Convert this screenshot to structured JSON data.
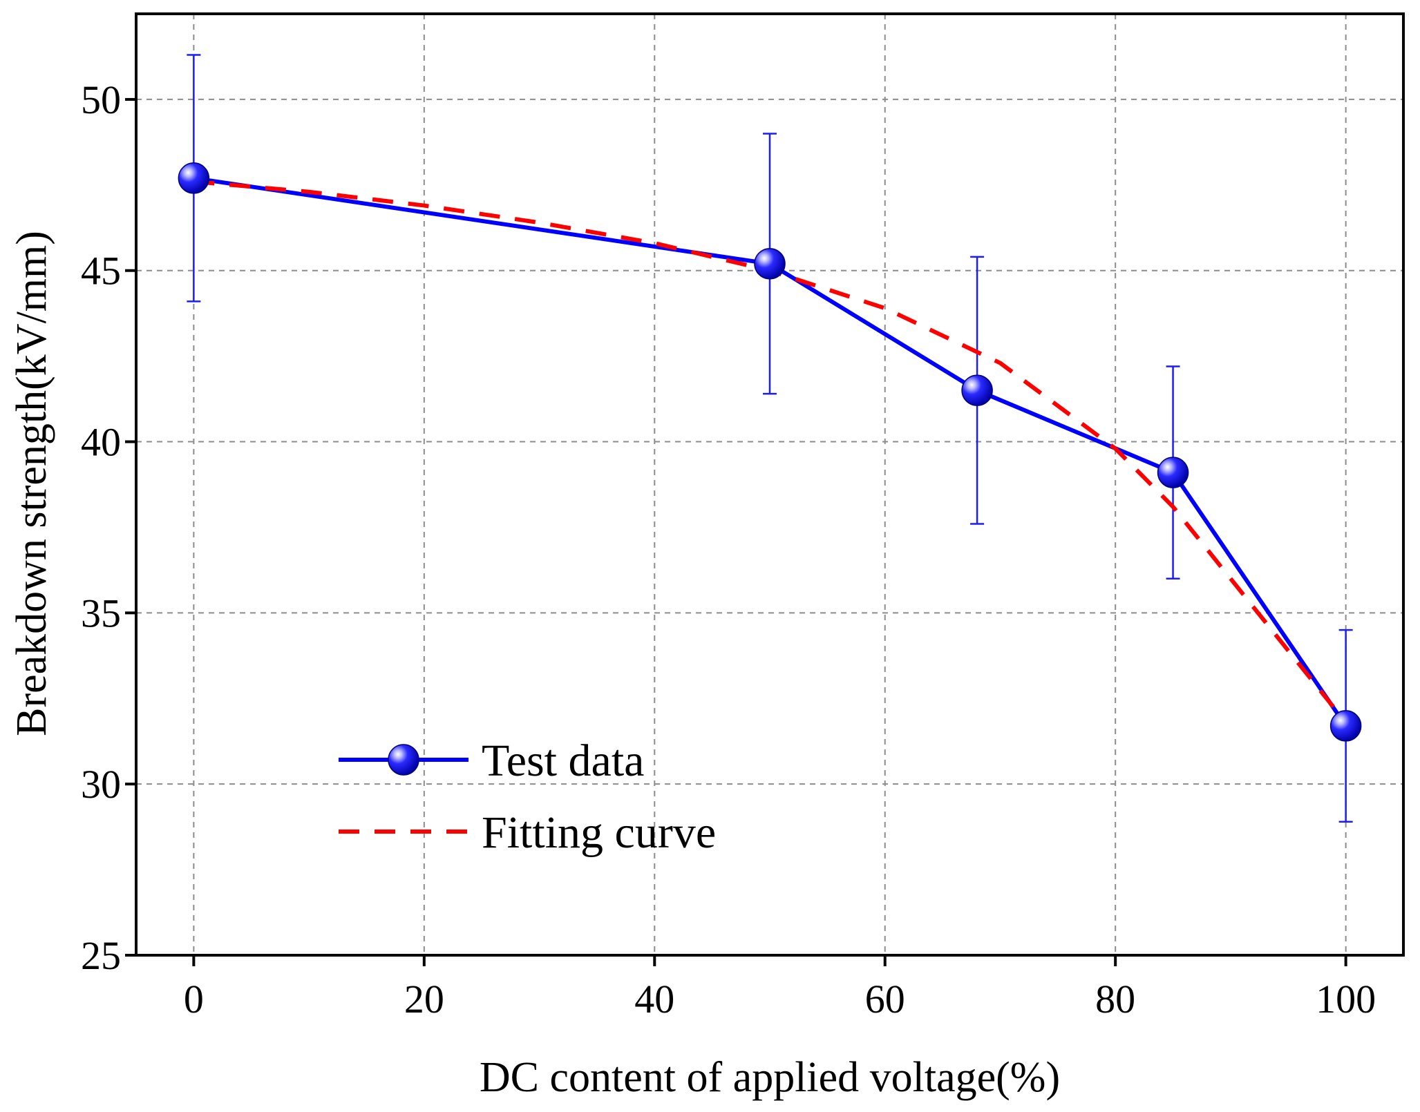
{
  "chart_data": {
    "type": "line",
    "title": "",
    "xlabel": "DC content of applied voltage(%)",
    "ylabel": "Breakdown strength(kV/mm)",
    "xlim": [
      -5,
      105
    ],
    "ylim": [
      25,
      52.5
    ],
    "xticks": [
      0,
      20,
      40,
      60,
      80,
      100
    ],
    "yticks": [
      25,
      30,
      35,
      40,
      45,
      50
    ],
    "grid": true,
    "legend_position": "bottom-left",
    "series": [
      {
        "name": "Test data",
        "style": "solid line with sphere markers",
        "color": "#0000ff",
        "x": [
          0,
          50,
          68,
          85,
          100
        ],
        "y": [
          47.7,
          45.2,
          41.5,
          39.1,
          31.7
        ],
        "error_upper": [
          51.3,
          49.0,
          45.4,
          42.2,
          34.5
        ],
        "error_lower": [
          44.1,
          41.4,
          37.6,
          36.0,
          28.9
        ]
      },
      {
        "name": "Fitting curve",
        "style": "dashed line",
        "color": "#ff0000",
        "x": [
          0,
          10,
          20,
          30,
          40,
          50,
          60,
          70,
          80,
          85,
          90,
          95,
          100
        ],
        "y": [
          47.6,
          47.3,
          46.9,
          46.4,
          45.8,
          45.0,
          43.9,
          42.3,
          39.8,
          38.1,
          36.0,
          33.9,
          31.8
        ]
      }
    ]
  }
}
